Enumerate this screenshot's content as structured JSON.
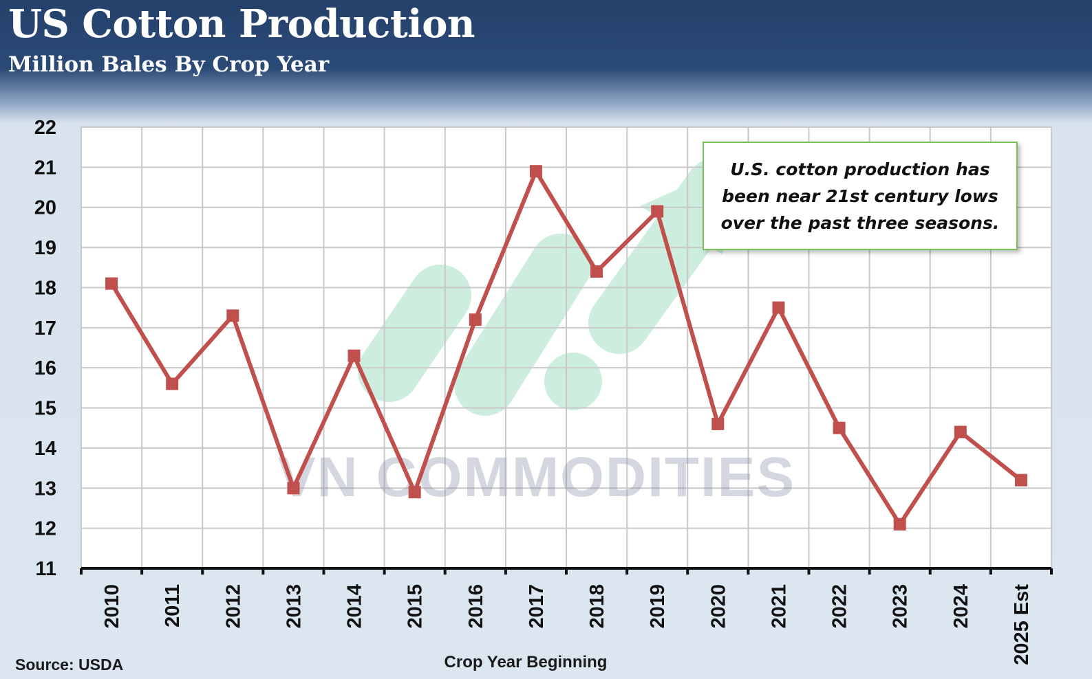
{
  "header": {
    "title": "US Cotton Production",
    "subtitle": "Million Bales By Crop Year"
  },
  "annotation": "U.S. cotton production has been near 21st century lows over the past three seasons.",
  "watermark": "VN COMMODITIES",
  "source": "Source: USDA",
  "colors": {
    "header": "#24416b",
    "line": "#c0504d",
    "grid": "#c8c8c8",
    "annotation_border": "#7cbf5a"
  },
  "chart_data": {
    "type": "line",
    "title": "US Cotton Production",
    "subtitle": "Million Bales By Crop Year",
    "xlabel": "Crop Year Beginning",
    "ylabel": "",
    "categories": [
      "2010",
      "2011",
      "2012",
      "2013",
      "2014",
      "2015",
      "2016",
      "2017",
      "2018",
      "2019",
      "2020",
      "2021",
      "2022",
      "2023",
      "2024",
      "2025 Est"
    ],
    "series": [
      {
        "name": "US Cotton Production",
        "values": [
          18.1,
          15.6,
          17.3,
          13.0,
          16.3,
          12.9,
          17.2,
          20.9,
          18.4,
          19.9,
          14.6,
          17.5,
          14.5,
          12.1,
          14.4,
          13.2
        ]
      }
    ],
    "ylim": [
      11,
      22
    ],
    "yticks": [
      11,
      12,
      13,
      14,
      15,
      16,
      17,
      18,
      19,
      20,
      21,
      22
    ],
    "grid": true
  }
}
